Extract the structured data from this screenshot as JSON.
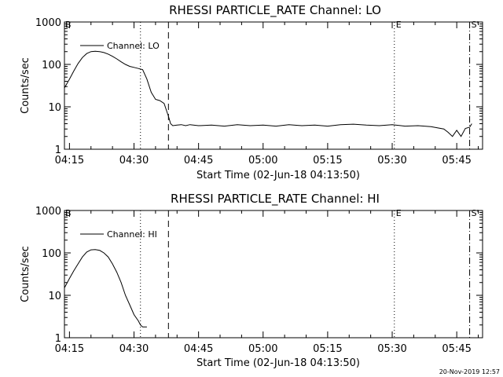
{
  "chart_data": [
    {
      "type": "line",
      "title": "RHESSI PARTICLE_RATE Channel: LO",
      "xlabel": "Start Time (02-Jun-18 04:13:50)",
      "ylabel": "Counts/sec",
      "yscale": "log",
      "ylim": [
        1,
        1000
      ],
      "xlim": [
        "04:13:50",
        "05:51:00"
      ],
      "x_ticks": [
        "04:15",
        "04:30",
        "04:45",
        "05:00",
        "05:15",
        "05:30",
        "05:45"
      ],
      "y_ticks": [
        "1",
        "10",
        "100",
        "1000"
      ],
      "grid": false,
      "legend_position": "top-left",
      "series": [
        {
          "name": "Channel: LO",
          "color": "#000000",
          "x": [
            "04:13:50",
            "04:15:00",
            "04:16:00",
            "04:17:00",
            "04:18:00",
            "04:19:00",
            "04:20:00",
            "04:21:00",
            "04:22:00",
            "04:23:00",
            "04:24:00",
            "04:25:00",
            "04:26:00",
            "04:27:00",
            "04:28:00",
            "04:29:00",
            "04:30:00",
            "04:31:00",
            "04:32:00",
            "04:33:00",
            "04:34:00",
            "04:35:00",
            "04:36:00",
            "04:37:00",
            "04:38:00",
            "04:38:30",
            "04:39:00",
            "04:40:00",
            "04:41:00",
            "04:42:00",
            "04:43:00",
            "04:45:00",
            "04:48:00",
            "04:51:00",
            "04:54:00",
            "04:57:00",
            "05:00:00",
            "05:03:00",
            "05:06:00",
            "05:09:00",
            "05:12:00",
            "05:15:00",
            "05:18:00",
            "05:21:00",
            "05:24:00",
            "05:27:00",
            "05:30:00",
            "05:33:00",
            "05:36:00",
            "05:39:00",
            "05:42:00",
            "05:43:00",
            "05:44:00",
            "05:45:00",
            "05:46:00",
            "05:47:00",
            "05:48:00",
            "05:48:30"
          ],
          "y": [
            28,
            45,
            70,
            105,
            145,
            180,
            200,
            205,
            200,
            190,
            175,
            155,
            135,
            115,
            100,
            90,
            85,
            80,
            75,
            45,
            22,
            15,
            14,
            12,
            6,
            4,
            3.6,
            3.7,
            3.8,
            3.6,
            3.8,
            3.6,
            3.7,
            3.5,
            3.8,
            3.6,
            3.7,
            3.5,
            3.8,
            3.6,
            3.7,
            3.5,
            3.8,
            3.9,
            3.7,
            3.6,
            3.8,
            3.5,
            3.6,
            3.4,
            3.0,
            2.5,
            2.0,
            2.8,
            2.0,
            3.1,
            3.3,
            4.0
          ]
        }
      ],
      "vlines": [
        {
          "x": "04:31:30",
          "style": "dotted",
          "label": ""
        },
        {
          "x": "04:38:00",
          "style": "dashed",
          "label": ""
        },
        {
          "x": "05:30:30",
          "style": "dotted",
          "label": "E"
        },
        {
          "x": "05:48:00",
          "style": "dashdot",
          "label": "S'"
        }
      ],
      "corner_marker": "B"
    },
    {
      "type": "line",
      "title": "RHESSI PARTICLE_RATE Channel: HI",
      "xlabel": "Start Time (02-Jun-18 04:13:50)",
      "ylabel": "Counts/sec",
      "yscale": "log",
      "ylim": [
        1,
        1000
      ],
      "xlim": [
        "04:13:50",
        "05:51:00"
      ],
      "x_ticks": [
        "04:15",
        "04:30",
        "04:45",
        "05:00",
        "05:15",
        "05:30",
        "05:45"
      ],
      "y_ticks": [
        "1",
        "10",
        "100",
        "1000"
      ],
      "grid": false,
      "legend_position": "top-left",
      "series": [
        {
          "name": "Channel: HI",
          "color": "#000000",
          "x": [
            "04:13:50",
            "04:15:00",
            "04:16:00",
            "04:17:00",
            "04:18:00",
            "04:19:00",
            "04:20:00",
            "04:21:00",
            "04:22:00",
            "04:23:00",
            "04:24:00",
            "04:25:00",
            "04:26:00",
            "04:27:00",
            "04:28:00",
            "04:29:00",
            "04:30:00",
            "04:31:00",
            "04:31:30",
            "04:32:00",
            "04:33:00"
          ],
          "y": [
            15,
            25,
            38,
            55,
            80,
            105,
            118,
            120,
            115,
            100,
            80,
            55,
            35,
            20,
            10,
            6,
            3.5,
            2.5,
            2.0,
            1.8,
            1.8
          ]
        }
      ],
      "vlines": [
        {
          "x": "04:31:30",
          "style": "dotted",
          "label": ""
        },
        {
          "x": "04:38:00",
          "style": "dashed",
          "label": ""
        },
        {
          "x": "05:30:30",
          "style": "dotted",
          "label": "E"
        },
        {
          "x": "05:48:00",
          "style": "dashdot",
          "label": "S'"
        }
      ],
      "corner_marker": "B"
    }
  ],
  "footer": {
    "timestamp": "20-Nov-2019 12:57"
  }
}
